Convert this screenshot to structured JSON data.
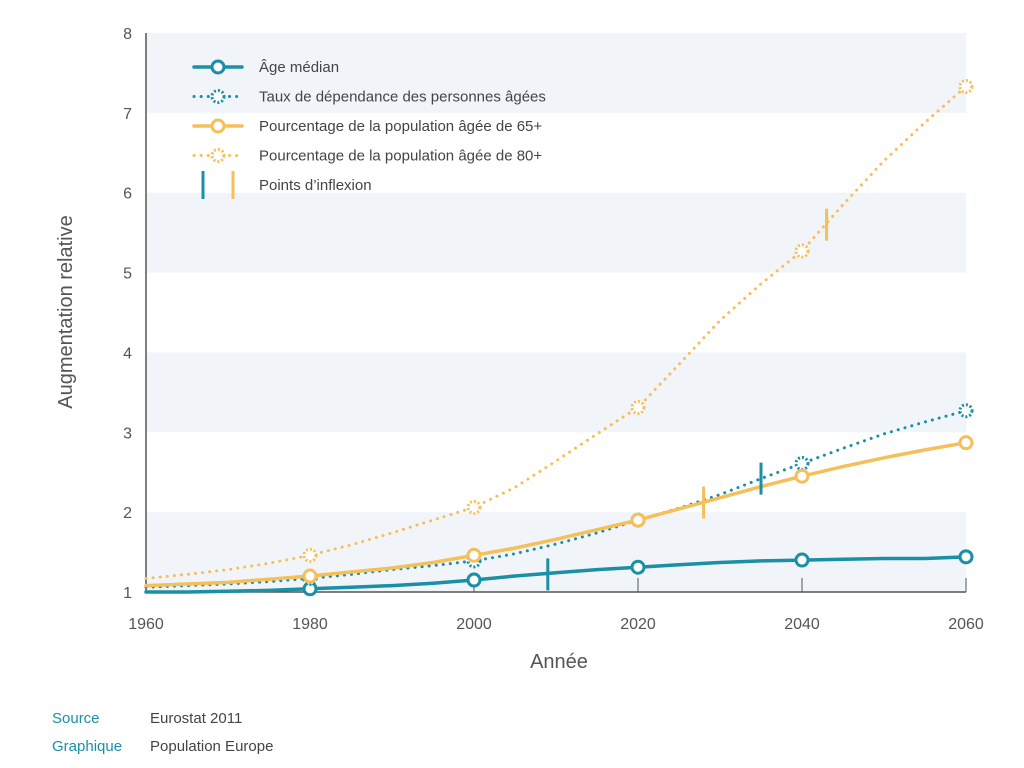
{
  "chart_data": {
    "type": "line",
    "xlabel": "Année",
    "ylabel": "Augmentation relative",
    "xlim": [
      1960,
      2060
    ],
    "ylim": [
      1,
      8
    ],
    "xticks": [
      "1960",
      "1980",
      "2000",
      "2020",
      "2040",
      "2060"
    ],
    "yticks": [
      "1",
      "2",
      "3",
      "4",
      "5",
      "6",
      "7",
      "8"
    ],
    "grid": "horizontal bands",
    "legend_position": "top-left",
    "series": [
      {
        "name": "Âge médian",
        "color": "#1a8fa6",
        "style": "solid",
        "x": [
          1960,
          1965,
          1970,
          1975,
          1980,
          1985,
          1990,
          1995,
          2000,
          2005,
          2010,
          2015,
          2020,
          2025,
          2030,
          2035,
          2040,
          2045,
          2050,
          2055,
          2060
        ],
        "y": [
          1.0,
          1.0,
          1.01,
          1.02,
          1.04,
          1.06,
          1.08,
          1.11,
          1.15,
          1.2,
          1.24,
          1.28,
          1.31,
          1.34,
          1.37,
          1.39,
          1.4,
          1.41,
          1.42,
          1.42,
          1.44
        ],
        "markers": [
          [
            1980,
            1.04
          ],
          [
            2000,
            1.15
          ],
          [
            2020,
            1.31
          ],
          [
            2040,
            1.4
          ],
          [
            2060,
            1.44
          ]
        ]
      },
      {
        "name": "Taux de dépendance des personnes âgées",
        "color": "#1a8fa6",
        "style": "dotted",
        "x": [
          1960,
          1965,
          1970,
          1975,
          1980,
          1985,
          1990,
          1995,
          2000,
          2005,
          2010,
          2015,
          2020,
          2025,
          2030,
          2035,
          2040,
          2045,
          2050,
          2055,
          2060
        ],
        "y": [
          1.06,
          1.08,
          1.1,
          1.13,
          1.17,
          1.22,
          1.28,
          1.33,
          1.39,
          1.48,
          1.6,
          1.74,
          1.9,
          2.05,
          2.22,
          2.42,
          2.61,
          2.8,
          2.98,
          3.13,
          3.27
        ],
        "markers": [
          [
            1980,
            1.17
          ],
          [
            2000,
            1.39
          ],
          [
            2020,
            1.9
          ],
          [
            2040,
            2.61
          ],
          [
            2060,
            3.27
          ]
        ]
      },
      {
        "name": "Pourcentage de la population âgée de 65+",
        "color": "#f5bf5a",
        "style": "solid",
        "x": [
          1960,
          1965,
          1970,
          1975,
          1980,
          1985,
          1990,
          1995,
          2000,
          2005,
          2010,
          2015,
          2020,
          2025,
          2030,
          2035,
          2040,
          2045,
          2050,
          2055,
          2060
        ],
        "y": [
          1.08,
          1.1,
          1.12,
          1.16,
          1.2,
          1.25,
          1.3,
          1.37,
          1.46,
          1.55,
          1.66,
          1.78,
          1.9,
          2.04,
          2.18,
          2.32,
          2.45,
          2.57,
          2.68,
          2.78,
          2.87
        ],
        "markers": [
          [
            1980,
            1.2
          ],
          [
            2000,
            1.46
          ],
          [
            2020,
            1.9
          ],
          [
            2040,
            2.45
          ],
          [
            2060,
            2.87
          ]
        ]
      },
      {
        "name": "Pourcentage de la population âgée de 80+",
        "color": "#f5bf5a",
        "style": "dotted",
        "x": [
          1960,
          1965,
          1970,
          1975,
          1980,
          1985,
          1990,
          1995,
          2000,
          2005,
          2010,
          2015,
          2020,
          2025,
          2030,
          2035,
          2040,
          2045,
          2050,
          2055,
          2060
        ],
        "y": [
          1.17,
          1.22,
          1.28,
          1.36,
          1.46,
          1.59,
          1.74,
          1.9,
          2.06,
          2.31,
          2.64,
          2.98,
          3.31,
          3.85,
          4.4,
          4.86,
          5.27,
          5.85,
          6.4,
          6.88,
          7.33
        ],
        "markers": [
          [
            1980,
            1.46
          ],
          [
            2000,
            2.06
          ],
          [
            2020,
            3.31
          ],
          [
            2040,
            5.27
          ],
          [
            2060,
            7.33
          ]
        ]
      }
    ],
    "inflection_points": [
      {
        "series": "Âge médian",
        "x": 2009,
        "y": 1.22,
        "color": "#1a8fa6"
      },
      {
        "series": "Taux de dépendance des personnes âgées",
        "x": 2035,
        "y": 2.42,
        "color": "#1a8fa6"
      },
      {
        "series": "Pourcentage de la population âgée de 65+",
        "x": 2028,
        "y": 2.12,
        "color": "#f5bf5a"
      },
      {
        "series": "Pourcentage de la population âgée de 80+",
        "x": 2043,
        "y": 5.6,
        "color": "#f5bf5a"
      }
    ],
    "legend": [
      {
        "label": "Âge médian",
        "kind": "solid",
        "color": "#1a8fa6"
      },
      {
        "label": "Taux de dépendance des personnes âgées",
        "kind": "dotted",
        "color": "#1a8fa6"
      },
      {
        "label": "Pourcentage de la population âgée de 65+",
        "kind": "solid",
        "color": "#f5bf5a"
      },
      {
        "label": "Pourcentage de la population âgée de 80+",
        "kind": "dotted",
        "color": "#f5bf5a"
      },
      {
        "label": "Points d’inflexion",
        "kind": "inflection",
        "colors": [
          "#1a8fa6",
          "#f5bf5a"
        ]
      }
    ]
  },
  "footer": {
    "source_label": "Source",
    "source_value": "Eurostat 2011",
    "graphic_label": "Graphique",
    "graphic_value": "Population Europe"
  },
  "colors": {
    "band": "#f1f5f9",
    "axis": "#555555",
    "teal": "#1a8fa6",
    "yellow": "#f5bf5a"
  }
}
